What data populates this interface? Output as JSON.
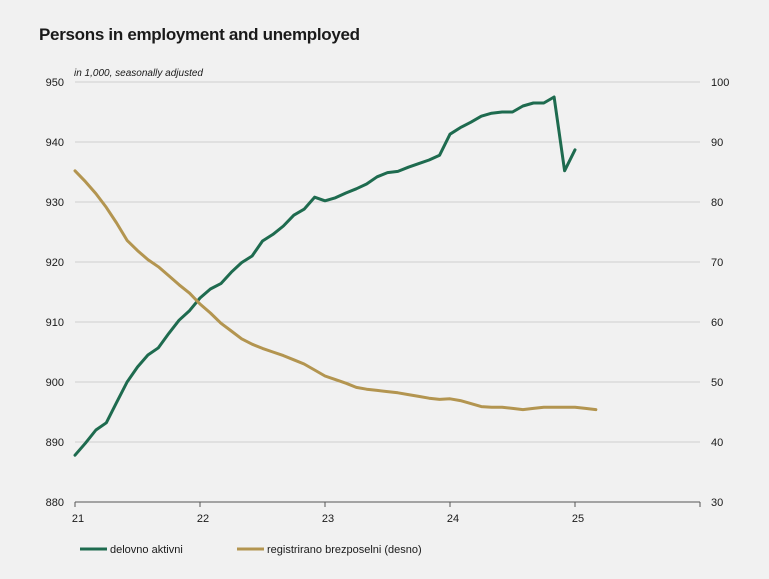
{
  "title": "Persons in employment and unemployed",
  "chart_data": {
    "type": "line",
    "title": "Persons in employment and unemployed",
    "unit_note": "in 1,000, seasonally adjusted",
    "x_ticks": [
      "21",
      "22",
      "23",
      "24",
      "25"
    ],
    "xlim": [
      21,
      26
    ],
    "y_left": {
      "lim": [
        880,
        950
      ],
      "ticks": [
        "880",
        "890",
        "900",
        "910",
        "920",
        "930",
        "940",
        "950"
      ]
    },
    "y_right": {
      "lim": [
        30,
        100
      ],
      "ticks": [
        "30",
        "40",
        "50",
        "60",
        "70",
        "80",
        "90",
        "100"
      ]
    },
    "grid": true,
    "legend_position": "bottom",
    "series": [
      {
        "name": "delovno aktivni",
        "axis": "left",
        "color": "#1e6b4f",
        "x": [
          21.0,
          21.083,
          21.167,
          21.25,
          21.333,
          21.417,
          21.5,
          21.583,
          21.667,
          21.75,
          21.833,
          21.917,
          22.0,
          22.083,
          22.167,
          22.25,
          22.333,
          22.417,
          22.5,
          22.583,
          22.667,
          22.75,
          22.833,
          22.917,
          23.0,
          23.083,
          23.167,
          23.25,
          23.333,
          23.417,
          23.5,
          23.583,
          23.667,
          23.75,
          23.833,
          23.917,
          24.0,
          24.083,
          24.167,
          24.25,
          24.333,
          24.417,
          24.5,
          24.583,
          24.667,
          24.75,
          24.833,
          24.917,
          25.0
        ],
        "values": [
          887.8,
          889.8,
          892.0,
          893.2,
          896.6,
          900.0,
          902.5,
          904.5,
          905.7,
          908.1,
          910.3,
          911.9,
          914.0,
          915.5,
          916.4,
          918.3,
          919.9,
          921.0,
          923.5,
          924.6,
          926.0,
          927.8,
          928.8,
          930.8,
          930.2,
          930.7,
          931.5,
          932.2,
          933.0,
          934.2,
          934.9,
          935.1,
          935.8,
          936.4,
          937.0,
          937.8,
          941.3,
          942.4,
          943.3,
          944.3,
          944.8,
          945.0,
          945.0,
          946.0,
          946.5,
          946.5,
          947.5,
          935.2,
          938.7
        ]
      },
      {
        "name": "registrirano brezposelni (desno)",
        "axis": "right",
        "color": "#b39550",
        "x": [
          21.0,
          21.083,
          21.167,
          21.25,
          21.333,
          21.417,
          21.5,
          21.583,
          21.667,
          21.75,
          21.833,
          21.917,
          22.0,
          22.083,
          22.167,
          22.25,
          22.333,
          22.417,
          22.5,
          22.583,
          22.667,
          22.75,
          22.833,
          22.917,
          23.0,
          23.083,
          23.167,
          23.25,
          23.333,
          23.417,
          23.5,
          23.583,
          23.667,
          23.75,
          23.833,
          23.917,
          24.0,
          24.083,
          24.167,
          24.25,
          24.333,
          24.417,
          24.5,
          24.583,
          24.667,
          24.75,
          24.833,
          24.917,
          25.0,
          25.083,
          25.167
        ],
        "values": [
          85.2,
          83.4,
          81.4,
          79.1,
          76.5,
          73.6,
          71.9,
          70.4,
          69.2,
          67.7,
          66.2,
          64.8,
          63.0,
          61.5,
          59.8,
          58.5,
          57.2,
          56.3,
          55.6,
          55.0,
          54.4,
          53.7,
          53.0,
          52.0,
          51.0,
          50.4,
          49.8,
          49.1,
          48.8,
          48.6,
          48.4,
          48.2,
          47.9,
          47.6,
          47.3,
          47.1,
          47.2,
          46.9,
          46.4,
          45.9,
          45.8,
          45.8,
          45.6,
          45.4,
          45.6,
          45.8,
          45.8,
          45.8,
          45.8,
          45.6,
          45.4
        ]
      }
    ]
  }
}
